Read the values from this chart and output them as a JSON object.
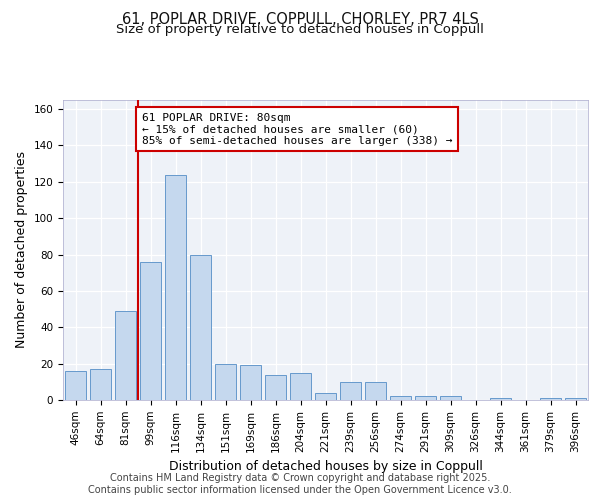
{
  "title_line1": "61, POPLAR DRIVE, COPPULL, CHORLEY, PR7 4LS",
  "title_line2": "Size of property relative to detached houses in Coppull",
  "xlabel": "Distribution of detached houses by size in Coppull",
  "ylabel": "Number of detached properties",
  "categories": [
    "46sqm",
    "64sqm",
    "81sqm",
    "99sqm",
    "116sqm",
    "134sqm",
    "151sqm",
    "169sqm",
    "186sqm",
    "204sqm",
    "221sqm",
    "239sqm",
    "256sqm",
    "274sqm",
    "291sqm",
    "309sqm",
    "326sqm",
    "344sqm",
    "361sqm",
    "379sqm",
    "396sqm"
  ],
  "values": [
    16,
    17,
    49,
    76,
    124,
    80,
    20,
    19,
    14,
    15,
    4,
    10,
    10,
    2,
    2,
    2,
    0,
    1,
    0,
    1,
    1
  ],
  "bar_color": "#c5d8ee",
  "bar_edge_color": "#6699cc",
  "red_line_x": 2.5,
  "annotation_text": "61 POPLAR DRIVE: 80sqm\n← 15% of detached houses are smaller (60)\n85% of semi-detached houses are larger (338) →",
  "annotation_box_edge": "#cc0000",
  "ylim": [
    0,
    165
  ],
  "yticks": [
    0,
    20,
    40,
    60,
    80,
    100,
    120,
    140,
    160
  ],
  "footer_line1": "Contains HM Land Registry data © Crown copyright and database right 2025.",
  "footer_line2": "Contains public sector information licensed under the Open Government Licence v3.0.",
  "plot_bg_color": "#eef2f8",
  "grid_color": "#ffffff",
  "title_fontsize": 10.5,
  "subtitle_fontsize": 9.5,
  "axis_label_fontsize": 9,
  "tick_fontsize": 7.5,
  "footer_fontsize": 7,
  "ann_fontsize": 8
}
